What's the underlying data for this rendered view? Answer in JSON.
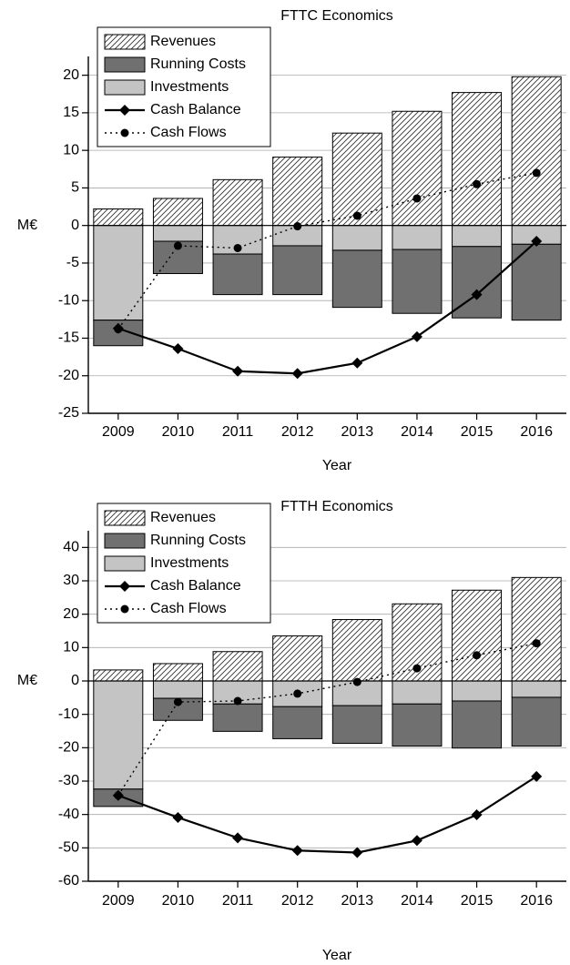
{
  "chart_data": [
    {
      "type": "bar",
      "title": "FTTC Economics",
      "y_label": "M€",
      "x_label": "Year",
      "stacked": true,
      "grid": true,
      "legend": "upper left",
      "categories": [
        "2009",
        "2010",
        "2011",
        "2012",
        "2013",
        "2014",
        "2015",
        "2016"
      ],
      "ylim": [
        -25,
        22.5
      ],
      "yticks": [
        -25,
        -20,
        -15,
        -10,
        -5,
        0,
        5,
        10,
        15,
        20
      ],
      "series": [
        {
          "name": "Revenues",
          "type": "bar",
          "color": "#ffffff",
          "pattern": "hatch",
          "values": [
            2.2,
            3.6,
            6.1,
            9.1,
            12.3,
            15.2,
            17.7,
            19.8
          ]
        },
        {
          "name": "Running Costs",
          "type": "bar",
          "color": "#707070",
          "values": [
            -3.4,
            -4.3,
            -5.4,
            -6.5,
            -7.6,
            -8.5,
            -9.5,
            -10.1
          ]
        },
        {
          "name": "Investments",
          "type": "bar",
          "color": "#c4c4c4",
          "values": [
            -12.6,
            -2.1,
            -3.8,
            -2.7,
            -3.3,
            -3.2,
            -2.8,
            -2.5
          ]
        },
        {
          "name": "Cash Balance",
          "type": "line",
          "color": "#000000",
          "line_style": "solid",
          "marker": "diamond",
          "values": [
            -13.7,
            -16.4,
            -19.4,
            -19.7,
            -18.3,
            -14.8,
            -9.2,
            -2.1
          ]
        },
        {
          "name": "Cash Flows",
          "type": "line",
          "color": "#000000",
          "line_style": "dotted",
          "marker": "circle",
          "values": [
            -13.8,
            -2.7,
            -3.0,
            -0.1,
            1.3,
            3.6,
            5.5,
            7.0
          ]
        }
      ]
    },
    {
      "type": "bar",
      "title": "FTTH Economics",
      "y_label": "M€",
      "x_label": "Year",
      "stacked": true,
      "grid": true,
      "legend": "upper left",
      "categories": [
        "2009",
        "2010",
        "2011",
        "2012",
        "2013",
        "2014",
        "2015",
        "2016"
      ],
      "ylim": [
        -60,
        45
      ],
      "yticks": [
        -60,
        -50,
        -40,
        -30,
        -20,
        -10,
        0,
        10,
        20,
        30,
        40
      ],
      "series": [
        {
          "name": "Revenues",
          "type": "bar",
          "color": "#ffffff",
          "pattern": "hatch",
          "values": [
            3.3,
            5.2,
            8.8,
            13.5,
            18.4,
            23.1,
            27.2,
            31.0
          ]
        },
        {
          "name": "Running Costs",
          "type": "bar",
          "color": "#707070",
          "values": [
            -5.2,
            -6.6,
            -8.2,
            -9.6,
            -11.3,
            -12.6,
            -14.1,
            -14.6
          ]
        },
        {
          "name": "Investments",
          "type": "bar",
          "color": "#c4c4c4",
          "values": [
            -32.4,
            -5.2,
            -6.9,
            -7.7,
            -7.4,
            -6.9,
            -6.0,
            -4.9
          ]
        },
        {
          "name": "Cash Balance",
          "type": "line",
          "color": "#000000",
          "line_style": "solid",
          "marker": "diamond",
          "values": [
            -34.3,
            -40.9,
            -47.0,
            -50.8,
            -51.4,
            -47.8,
            -40.1,
            -28.6
          ]
        },
        {
          "name": "Cash Flows",
          "type": "line",
          "color": "#000000",
          "line_style": "dotted",
          "marker": "circle",
          "values": [
            -34.3,
            -6.3,
            -6.0,
            -3.8,
            -0.3,
            3.8,
            7.7,
            11.3
          ]
        }
      ]
    }
  ]
}
